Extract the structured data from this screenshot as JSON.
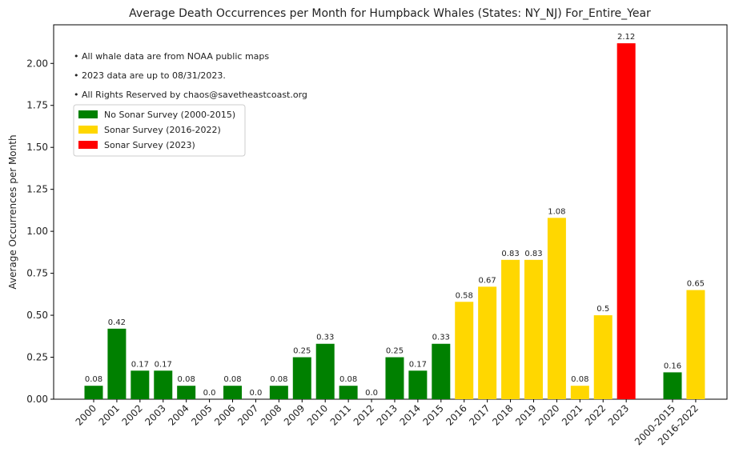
{
  "chart_data": {
    "type": "bar",
    "title": "Average Death Occurrences per Month for Humpback Whales (States: NY_NJ) For_Entire_Year",
    "y_label": "Average Occurrences per Month",
    "annotations": [
      "• All whale data are from NOAA public maps",
      "• 2023 data are up to 08/31/2023.",
      "• All Rights Reserved by chaos@savetheastcoast.org"
    ],
    "categories": [
      "2000",
      "2001",
      "2002",
      "2003",
      "2004",
      "2005",
      "2006",
      "2007",
      "2008",
      "2009",
      "2010",
      "2011",
      "2012",
      "2013",
      "2014",
      "2015",
      "2016",
      "2017",
      "2018",
      "2019",
      "2020",
      "2021",
      "2022",
      "2023",
      null,
      "2000-2015",
      "2016-2022"
    ],
    "values": [
      0.08,
      0.42,
      0.17,
      0.17,
      0.08,
      0,
      0.08,
      0,
      0.08,
      0.25,
      0.33,
      0.08,
      0,
      0.25,
      0.17,
      0.33,
      0.58,
      0.67,
      0.83,
      0.83,
      1.08,
      0.08,
      0.5,
      2.12,
      null,
      0.16,
      0.65
    ],
    "value_labels": [
      "0.08",
      "0.42",
      "0.17",
      "0.17",
      "0.08",
      "0.0",
      "0.08",
      "0.0",
      "0.08",
      "0.25",
      "0.33",
      "0.08",
      "0.0",
      "0.25",
      "0.17",
      "0.33",
      "0.58",
      "0.67",
      "0.83",
      "0.83",
      "1.08",
      "0.08",
      "0.5",
      "2.12",
      null,
      "0.16",
      "0.65"
    ],
    "colors": [
      "#008000",
      "#008000",
      "#008000",
      "#008000",
      "#008000",
      "#008000",
      "#008000",
      "#008000",
      "#008000",
      "#008000",
      "#008000",
      "#008000",
      "#008000",
      "#008000",
      "#008000",
      "#008000",
      "#ffd700",
      "#ffd700",
      "#ffd700",
      "#ffd700",
      "#ffd700",
      "#ffd700",
      "#ffd700",
      "#ff0000",
      null,
      "#008000",
      "#ffd700"
    ],
    "legend": [
      {
        "label": "No Sonar Survey (2000-2015)",
        "color": "#008000"
      },
      {
        "label": "Sonar Survey (2016-2022)",
        "color": "#ffd700"
      },
      {
        "label": "Sonar Survey (2023)",
        "color": "#ff0000"
      }
    ],
    "legend_position": "upper left",
    "ylim": [
      0,
      2.23
    ],
    "yticks": [
      {
        "value": 0,
        "label": "0.00"
      },
      {
        "value": 0.25,
        "label": "0.25"
      },
      {
        "value": 0.5,
        "label": "0.50"
      },
      {
        "value": 0.75,
        "label": "0.75"
      },
      {
        "value": 1,
        "label": "1.00"
      },
      {
        "value": 1.25,
        "label": "1.25"
      },
      {
        "value": 1.5,
        "label": "1.50"
      },
      {
        "value": 1.75,
        "label": "1.75"
      },
      {
        "value": 2,
        "label": "2.00"
      }
    ]
  }
}
